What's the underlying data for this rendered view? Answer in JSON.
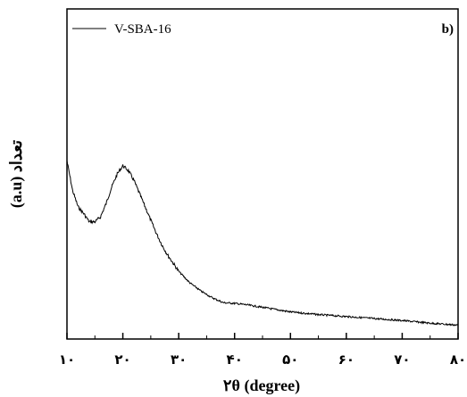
{
  "chart_data": {
    "type": "line",
    "panel_label": "b)",
    "xlabel": "۲θ (degree)",
    "ylabel": "(a.u) تعداد",
    "xlim": [
      10,
      80
    ],
    "ylim": [
      0,
      100
    ],
    "x_ticks": [
      10,
      20,
      30,
      40,
      50,
      60,
      70,
      80
    ],
    "x_tick_labels": [
      "۱۰",
      "۲۰",
      "۳۰",
      "۴۰",
      "۵۰",
      "۶۰",
      "۷۰",
      "۸۰"
    ],
    "grid": false,
    "legend_position": "top-left",
    "series": [
      {
        "name": "V-SBA-16",
        "color": "#000000",
        "x": [
          10,
          11,
          12,
          13,
          14,
          15,
          16,
          17,
          18,
          19,
          20,
          21,
          22,
          23,
          24,
          25,
          26,
          27,
          28,
          29,
          30,
          32,
          34,
          36,
          38,
          40,
          42,
          45,
          50,
          55,
          60,
          65,
          70,
          75,
          80
        ],
        "y": [
          54,
          45,
          40,
          38,
          35.5,
          35.5,
          37,
          41,
          46,
          50,
          52.5,
          51,
          48,
          44,
          40,
          36,
          32,
          28.5,
          25.5,
          23,
          20.5,
          17,
          14.5,
          12.5,
          11,
          10.8,
          10.4,
          9.6,
          8.2,
          7.4,
          6.8,
          6.2,
          5.6,
          4.8,
          4.2
        ]
      }
    ]
  }
}
